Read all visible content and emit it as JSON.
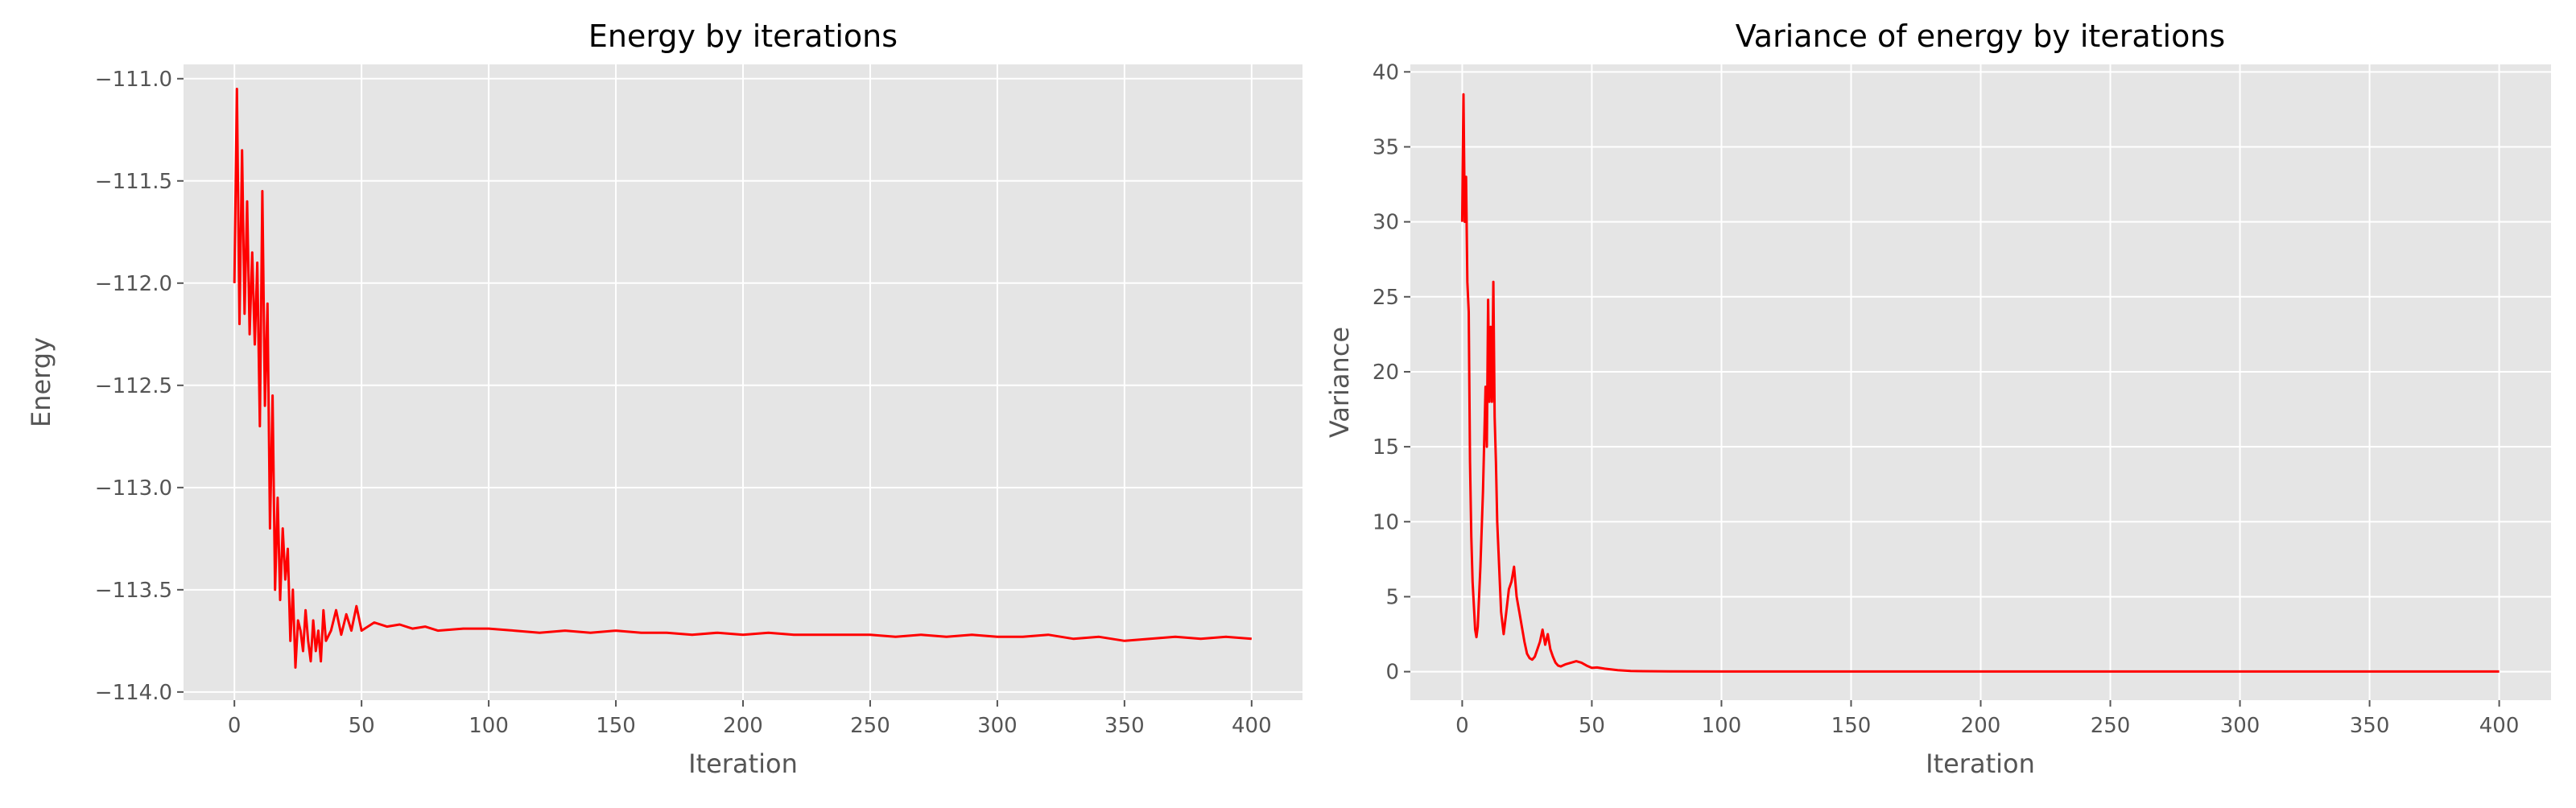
{
  "chart_data": [
    {
      "type": "line",
      "title": "Energy by iterations",
      "xlabel": "Iteration",
      "ylabel": "Energy",
      "xlim": [
        -20,
        420
      ],
      "ylim": [
        -114.04,
        -110.93
      ],
      "xticks": [
        0,
        50,
        100,
        150,
        200,
        250,
        300,
        350,
        400
      ],
      "yticks": [
        -114.0,
        -113.5,
        -113.0,
        -112.5,
        -112.0,
        -111.5,
        -111.0
      ],
      "xtick_labels": [
        "0",
        "50",
        "100",
        "150",
        "200",
        "250",
        "300",
        "350",
        "400"
      ],
      "ytick_labels": [
        "−114.0",
        "−113.5",
        "−113.0",
        "−112.5",
        "−112.0",
        "−111.5",
        "−111.0"
      ],
      "grid": true,
      "series": [
        {
          "color": "#ff0000",
          "x": [
            0,
            1,
            2,
            3,
            4,
            5,
            6,
            7,
            8,
            9,
            10,
            11,
            12,
            13,
            14,
            15,
            16,
            17,
            18,
            19,
            20,
            21,
            22,
            23,
            24,
            25,
            26,
            27,
            28,
            29,
            30,
            31,
            32,
            33,
            34,
            35,
            36,
            38,
            40,
            42,
            44,
            46,
            48,
            50,
            55,
            60,
            65,
            70,
            75,
            80,
            90,
            100,
            110,
            120,
            130,
            140,
            150,
            160,
            170,
            180,
            190,
            200,
            210,
            220,
            230,
            240,
            250,
            260,
            270,
            280,
            290,
            300,
            310,
            320,
            330,
            340,
            350,
            360,
            370,
            380,
            390,
            400
          ],
          "y": [
            -112.0,
            -111.05,
            -112.2,
            -111.35,
            -112.15,
            -111.6,
            -112.25,
            -111.85,
            -112.3,
            -111.9,
            -112.7,
            -111.55,
            -112.6,
            -112.1,
            -113.2,
            -112.55,
            -113.5,
            -113.05,
            -113.55,
            -113.2,
            -113.45,
            -113.3,
            -113.75,
            -113.5,
            -113.88,
            -113.65,
            -113.7,
            -113.8,
            -113.6,
            -113.75,
            -113.85,
            -113.65,
            -113.8,
            -113.7,
            -113.85,
            -113.6,
            -113.75,
            -113.7,
            -113.6,
            -113.72,
            -113.62,
            -113.7,
            -113.58,
            -113.7,
            -113.66,
            -113.68,
            -113.67,
            -113.69,
            -113.68,
            -113.7,
            -113.69,
            -113.69,
            -113.7,
            -113.71,
            -113.7,
            -113.71,
            -113.7,
            -113.71,
            -113.71,
            -113.72,
            -113.71,
            -113.72,
            -113.71,
            -113.72,
            -113.72,
            -113.72,
            -113.72,
            -113.73,
            -113.72,
            -113.73,
            -113.72,
            -113.73,
            -113.73,
            -113.72,
            -113.74,
            -113.73,
            -113.75,
            -113.74,
            -113.73,
            -113.74,
            -113.73,
            -113.74
          ]
        }
      ]
    },
    {
      "type": "line",
      "title": "Variance of energy by iterations",
      "xlabel": "Iteration",
      "ylabel": "Variance",
      "xlim": [
        -20,
        420
      ],
      "ylim": [
        -1.9,
        40.5
      ],
      "xticks": [
        0,
        50,
        100,
        150,
        200,
        250,
        300,
        350,
        400
      ],
      "yticks": [
        0,
        5,
        10,
        15,
        20,
        25,
        30,
        35,
        40
      ],
      "xtick_labels": [
        "0",
        "50",
        "100",
        "150",
        "200",
        "250",
        "300",
        "350",
        "400"
      ],
      "ytick_labels": [
        "0",
        "5",
        "10",
        "15",
        "20",
        "25",
        "30",
        "35",
        "40"
      ],
      "grid": true,
      "series": [
        {
          "color": "#ff0000",
          "x": [
            0,
            0.5,
            1,
            1.5,
            2,
            2.5,
            3,
            3.5,
            4,
            5,
            5.5,
            6,
            7,
            8,
            9,
            9.5,
            10,
            10.5,
            11,
            11.5,
            12,
            12.5,
            13,
            13.5,
            14,
            15,
            16,
            17,
            18,
            19,
            20,
            21,
            22,
            23,
            24,
            25,
            26,
            27,
            28,
            29,
            30,
            31,
            32,
            33,
            34,
            35,
            36,
            37,
            38,
            40,
            42,
            44,
            46,
            48,
            50,
            52,
            55,
            60,
            65,
            70,
            80,
            100,
            150,
            200,
            250,
            300,
            350,
            400
          ],
          "y": [
            30,
            38.5,
            30,
            33,
            26,
            24,
            14,
            9,
            6,
            2.8,
            2.3,
            3,
            7,
            12,
            19,
            15,
            24.8,
            18,
            23,
            18,
            26,
            17,
            14,
            10,
            8,
            4,
            2.5,
            4,
            5.5,
            6,
            7,
            5,
            4,
            3,
            2,
            1.2,
            0.9,
            0.8,
            1,
            1.5,
            2,
            2.8,
            1.8,
            2.5,
            1.5,
            1,
            0.6,
            0.4,
            0.35,
            0.5,
            0.6,
            0.7,
            0.6,
            0.4,
            0.25,
            0.28,
            0.2,
            0.1,
            0.05,
            0.03,
            0.02,
            0.01,
            0.01,
            0.01,
            0.01,
            0.01,
            0.01,
            0.01
          ]
        }
      ]
    }
  ]
}
